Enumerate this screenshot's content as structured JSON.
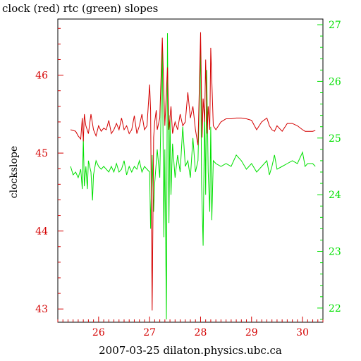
{
  "chart_data": {
    "type": "line",
    "title": "clock (red) rtc (green) slopes",
    "xlabel": "2007-03-25 dilaton.physics.ubc.ca",
    "ylabel": "clockslope",
    "colors": {
      "frame": "#000000",
      "clock": "#d40000",
      "rtc": "#00e000",
      "bottom_axis": "#d40000"
    },
    "x_range": [
      25.2,
      30.4
    ],
    "x_ticks": [
      "26",
      "27",
      "28",
      "29",
      "30"
    ],
    "left_axis": {
      "range": [
        42.83,
        46.72
      ],
      "ticks": [
        "43",
        "44",
        "45",
        "46"
      ],
      "color": "#d40000"
    },
    "right_axis": {
      "range": [
        21.75,
        27.1
      ],
      "ticks": [
        "22",
        "23",
        "24",
        "25",
        "26",
        "27"
      ],
      "color": "#00e000"
    },
    "series": [
      {
        "name": "clock",
        "axis": "left",
        "color": "#d40000",
        "x": [
          25.45,
          25.55,
          25.6,
          25.65,
          25.68,
          25.7,
          25.72,
          25.75,
          25.8,
          25.85,
          25.9,
          25.95,
          26.0,
          26.05,
          26.1,
          26.15,
          26.2,
          26.25,
          26.3,
          26.35,
          26.4,
          26.45,
          26.5,
          26.55,
          26.6,
          26.65,
          26.7,
          26.75,
          26.8,
          26.85,
          26.9,
          26.95,
          27.0,
          27.02,
          27.05,
          27.08,
          27.1,
          27.13,
          27.15,
          27.2,
          27.25,
          27.3,
          27.35,
          27.38,
          27.42,
          27.45,
          27.5,
          27.55,
          27.6,
          27.65,
          27.7,
          27.75,
          27.8,
          27.85,
          27.9,
          27.95,
          28.0,
          28.03,
          28.05,
          28.08,
          28.1,
          28.13,
          28.15,
          28.18,
          28.2,
          28.25,
          28.3,
          28.4,
          28.5,
          28.6,
          28.7,
          28.8,
          28.9,
          29.0,
          29.1,
          29.2,
          29.3,
          29.35,
          29.4,
          29.45,
          29.5,
          29.6,
          29.7,
          29.8,
          29.9,
          30.0,
          30.05,
          30.1,
          30.2,
          30.25
        ],
        "values": [
          45.3,
          45.28,
          45.22,
          45.18,
          45.45,
          45.15,
          45.5,
          45.35,
          45.25,
          45.5,
          45.3,
          45.22,
          45.35,
          45.28,
          45.32,
          45.3,
          45.42,
          45.25,
          45.3,
          45.38,
          45.3,
          45.45,
          45.3,
          45.35,
          45.25,
          45.3,
          45.48,
          45.25,
          45.35,
          45.5,
          45.3,
          45.35,
          45.88,
          45.55,
          42.98,
          45.2,
          45.4,
          45.55,
          45.3,
          45.45,
          46.48,
          45.35,
          46.1,
          45.3,
          45.6,
          45.25,
          45.4,
          45.3,
          45.5,
          45.35,
          45.4,
          45.78,
          45.45,
          45.6,
          45.3,
          45.1,
          46.55,
          45.2,
          45.7,
          45.4,
          46.2,
          45.25,
          45.6,
          45.3,
          46.35,
          45.35,
          45.3,
          45.4,
          45.44,
          45.44,
          45.45,
          45.45,
          45.44,
          45.42,
          45.3,
          45.4,
          45.45,
          45.35,
          45.3,
          45.28,
          45.35,
          45.28,
          45.38,
          45.38,
          45.35,
          45.3,
          45.28,
          45.28,
          45.28,
          45.29
        ]
      },
      {
        "name": "rtc",
        "axis": "right",
        "color": "#00e000",
        "x": [
          25.45,
          25.5,
          25.55,
          25.6,
          25.65,
          25.68,
          25.7,
          25.72,
          25.75,
          25.78,
          25.8,
          25.85,
          25.88,
          25.9,
          25.95,
          26.0,
          26.05,
          26.1,
          26.15,
          26.2,
          26.25,
          26.3,
          26.35,
          26.4,
          26.45,
          26.5,
          26.55,
          26.6,
          26.65,
          26.7,
          26.75,
          26.8,
          26.85,
          26.9,
          26.95,
          27.0,
          27.02,
          27.05,
          27.08,
          27.1,
          27.15,
          27.2,
          27.25,
          27.28,
          27.3,
          27.33,
          27.35,
          27.38,
          27.4,
          27.42,
          27.45,
          27.5,
          27.55,
          27.6,
          27.65,
          27.7,
          27.75,
          27.8,
          27.85,
          27.9,
          27.95,
          28.0,
          28.02,
          28.05,
          28.08,
          28.1,
          28.12,
          28.15,
          28.18,
          28.2,
          28.22,
          28.25,
          28.3,
          28.4,
          28.5,
          28.6,
          28.7,
          28.8,
          28.9,
          29.0,
          29.1,
          29.2,
          29.3,
          29.35,
          29.4,
          29.45,
          29.5,
          29.6,
          29.7,
          29.8,
          29.9,
          30.0,
          30.05,
          30.1,
          30.2,
          30.25
        ],
        "values": [
          24.5,
          24.35,
          24.4,
          24.3,
          24.45,
          24.1,
          25.0,
          24.15,
          24.5,
          24.1,
          24.6,
          24.4,
          23.9,
          24.35,
          24.6,
          24.5,
          24.45,
          24.5,
          24.45,
          24.4,
          24.5,
          24.4,
          24.55,
          24.4,
          24.45,
          24.6,
          24.35,
          24.5,
          24.4,
          24.5,
          24.45,
          24.6,
          24.4,
          24.5,
          24.45,
          24.4,
          23.4,
          24.7,
          23.7,
          24.2,
          24.8,
          24.3,
          26.65,
          23.25,
          24.8,
          21.8,
          26.85,
          23.5,
          25.4,
          24.0,
          24.9,
          24.3,
          24.7,
          24.4,
          25.2,
          24.5,
          24.6,
          24.3,
          25.0,
          24.4,
          24.6,
          26.6,
          24.2,
          23.1,
          25.5,
          24.0,
          26.2,
          24.4,
          23.7,
          25.2,
          23.55,
          24.6,
          24.55,
          24.5,
          24.55,
          24.5,
          24.7,
          24.6,
          24.45,
          24.55,
          24.4,
          24.5,
          24.6,
          24.35,
          24.5,
          24.7,
          24.45,
          24.5,
          24.55,
          24.6,
          24.55,
          24.75,
          24.5,
          24.55,
          24.55,
          24.5
        ]
      }
    ]
  }
}
